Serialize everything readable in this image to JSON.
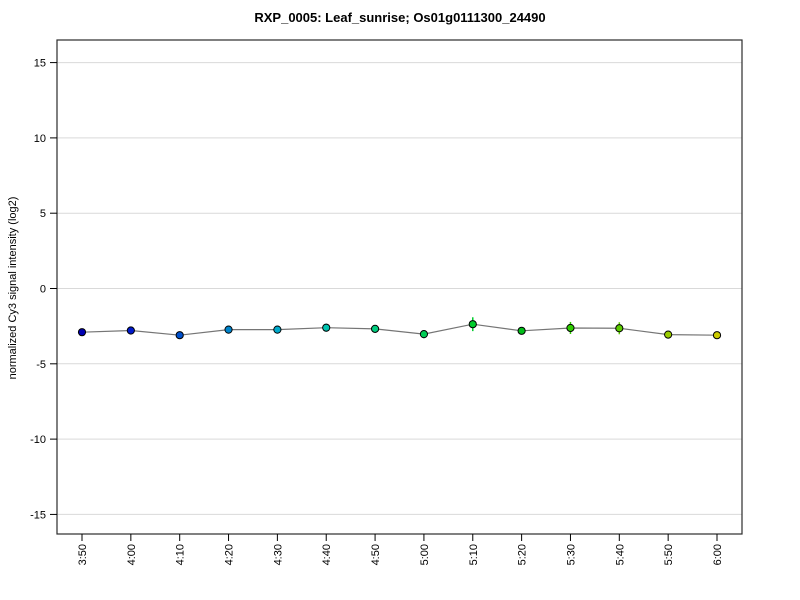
{
  "chart_data": {
    "type": "line",
    "title": "RXP_0005: Leaf_sunrise; Os01g0111300_24490",
    "ylabel": "normalized Cy3 signal intensity (log2)",
    "xlabel": "",
    "categories": [
      "3:50",
      "4:00",
      "4:10",
      "4:20",
      "4:30",
      "4:40",
      "4:50",
      "5:00",
      "5:10",
      "5:20",
      "5:30",
      "5:40",
      "5:50",
      "6:00"
    ],
    "series": [
      {
        "name": "normalized Cy3 signal intensity",
        "values": [
          -2.9,
          -2.79,
          -3.1,
          -2.73,
          -2.73,
          -2.6,
          -2.68,
          -3.03,
          -2.37,
          -2.81,
          -2.62,
          -2.64,
          -3.06,
          -3.1
        ],
        "errors": [
          0.08,
          0.08,
          0.1,
          0.2,
          0.2,
          0.27,
          0.1,
          0.27,
          0.46,
          0.1,
          0.4,
          0.4,
          0.08,
          0.08
        ]
      }
    ],
    "point_colors": [
      "#0000B2",
      "#0019CC",
      "#0050CC",
      "#0084CC",
      "#00AACC",
      "#00C4B0",
      "#00CC7E",
      "#00CC55",
      "#00CC2C",
      "#00BE19",
      "#2ECC00",
      "#5CCC00",
      "#99CC00",
      "#CCCC00"
    ],
    "yticks": [
      15,
      10,
      5,
      0,
      -5,
      -10,
      -15
    ],
    "ylim": [
      -16.3,
      16.5
    ],
    "grid": "horizontal",
    "legend": "none",
    "colors": {
      "gridline": "#d9d9d9",
      "axis_box": "#2b2b2b",
      "tick": "#000000",
      "line": "#757575",
      "marker_outline": "#000000",
      "background": "#ffffff"
    }
  }
}
